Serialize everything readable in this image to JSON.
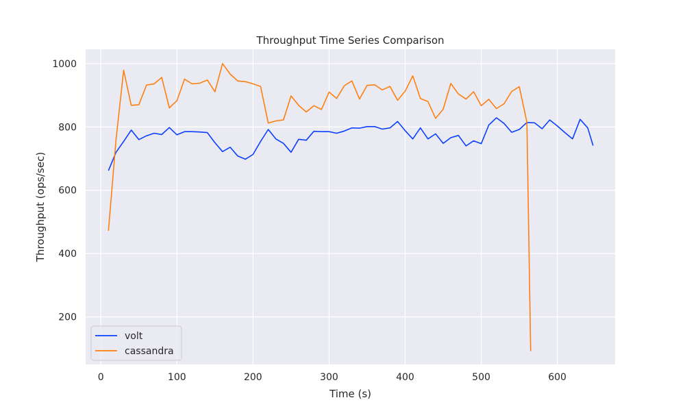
{
  "chart_data": {
    "type": "line",
    "title": "Throughput Time Series Comparison",
    "xlabel": "Time (s)",
    "ylabel": "Throughput (ops/sec)",
    "xlim": [
      -20,
      676
    ],
    "ylim": [
      50,
      1045
    ],
    "xticks": [
      0,
      100,
      200,
      300,
      400,
      500,
      600
    ],
    "yticks": [
      200,
      400,
      600,
      800,
      1000
    ],
    "grid": true,
    "legend": "lower-left",
    "series": [
      {
        "name": "volt",
        "color": "#0a3fff",
        "x": [
          10,
          20,
          30,
          40,
          50,
          60,
          70,
          80,
          90,
          100,
          110,
          120,
          130,
          140,
          150,
          160,
          170,
          180,
          190,
          200,
          210,
          220,
          230,
          240,
          250,
          260,
          270,
          280,
          290,
          300,
          310,
          320,
          330,
          340,
          350,
          360,
          370,
          380,
          390,
          400,
          410,
          420,
          430,
          440,
          450,
          460,
          470,
          480,
          490,
          500,
          510,
          520,
          530,
          540,
          550,
          560,
          570,
          580,
          590,
          600,
          610,
          620,
          630,
          640,
          647
        ],
        "y": [
          662,
          720,
          754,
          790,
          760,
          772,
          780,
          776,
          798,
          775,
          785,
          785,
          784,
          782,
          750,
          722,
          736,
          708,
          698,
          713,
          754,
          792,
          762,
          748,
          720,
          761,
          758,
          786,
          785,
          785,
          780,
          787,
          797,
          796,
          801,
          801,
          793,
          797,
          817,
          788,
          762,
          797,
          762,
          778,
          748,
          766,
          773,
          740,
          756,
          747,
          806,
          829,
          811,
          783,
          792,
          814,
          813,
          794,
          822,
          803,
          782,
          762,
          824,
          797,
          741
        ]
      },
      {
        "name": "cassandra",
        "color": "#ff7f0e",
        "x": [
          10,
          20,
          30,
          40,
          50,
          60,
          70,
          80,
          90,
          100,
          110,
          120,
          130,
          140,
          150,
          160,
          170,
          180,
          190,
          200,
          210,
          220,
          230,
          240,
          250,
          260,
          270,
          280,
          290,
          300,
          310,
          320,
          330,
          340,
          350,
          360,
          370,
          380,
          390,
          400,
          410,
          420,
          430,
          440,
          450,
          460,
          470,
          480,
          490,
          500,
          510,
          520,
          530,
          540,
          550,
          560,
          565
        ],
        "y": [
          472,
          760,
          979,
          868,
          870,
          932,
          936,
          956,
          860,
          883,
          951,
          936,
          938,
          948,
          911,
          1000,
          967,
          945,
          943,
          936,
          928,
          812,
          819,
          822,
          898,
          868,
          847,
          867,
          855,
          910,
          890,
          930,
          945,
          888,
          931,
          933,
          917,
          928,
          884,
          913,
          961,
          890,
          880,
          827,
          856,
          937,
          904,
          888,
          911,
          867,
          887,
          858,
          873,
          912,
          927,
          815,
          92
        ]
      }
    ]
  }
}
